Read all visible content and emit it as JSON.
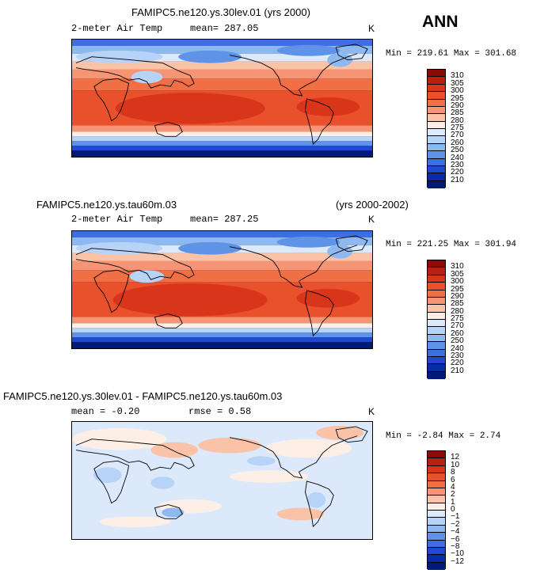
{
  "season": "ANN",
  "unit": "K",
  "field": "2-meter Air Temp",
  "panels": [
    {
      "title_left": "FAMIPC5.ne120.ys.30lev.01 (yrs 2000)",
      "title_right": "",
      "mean_text": "mean= 287.05",
      "rmse_text": "",
      "minmax_text": "Min = 219.61 Max = 301.68",
      "colorbar": {
        "levels": [
          "310",
          "305",
          "300",
          "295",
          "290",
          "285",
          "280",
          "275",
          "270",
          "260",
          "250",
          "240",
          "230",
          "220",
          "210"
        ],
        "colors": [
          "#8a0b08",
          "#b8200f",
          "#d9351a",
          "#e9502c",
          "#f06f45",
          "#f59575",
          "#fac3a8",
          "#fdefe6",
          "#dce9fb",
          "#b7d3f7",
          "#8db8f0",
          "#5e93e8",
          "#3c70e0",
          "#1f49d2",
          "#0a2aa8",
          "#001a7a"
        ]
      }
    },
    {
      "title_left": "FAMIPC5.ne120.ys.tau60m.03",
      "title_right": "(yrs 2000-2002)",
      "mean_text": "mean= 287.25",
      "rmse_text": "",
      "minmax_text": "Min = 221.25 Max = 301.94",
      "colorbar": {
        "levels": [
          "310",
          "305",
          "300",
          "295",
          "290",
          "285",
          "280",
          "275",
          "270",
          "260",
          "250",
          "240",
          "230",
          "220",
          "210"
        ],
        "colors": [
          "#8a0b08",
          "#b8200f",
          "#d9351a",
          "#e9502c",
          "#f06f45",
          "#f59575",
          "#fac3a8",
          "#fdefe6",
          "#dce9fb",
          "#b7d3f7",
          "#8db8f0",
          "#5e93e8",
          "#3c70e0",
          "#1f49d2",
          "#0a2aa8",
          "#001a7a"
        ]
      }
    },
    {
      "title_left": "FAMIPC5.ne120.ys.30lev.01 - FAMIPC5.ne120.ys.tau60m.03",
      "title_right": "",
      "mean_text": "mean =   -0.20",
      "rmse_text": "rmse =   0.58",
      "minmax_text": "Min =  -2.84 Max =   2.74",
      "colorbar": {
        "levels": [
          "12",
          "10",
          "8",
          "6",
          "4",
          "2",
          "1",
          "0",
          "−1",
          "−2",
          "−4",
          "−6",
          "−8",
          "−10",
          "−12"
        ],
        "colors": [
          "#8a0b08",
          "#b8200f",
          "#d9351a",
          "#e9502c",
          "#f06f45",
          "#f59575",
          "#fac3a8",
          "#fdefe6",
          "#dce9fb",
          "#b7d3f7",
          "#8db8f0",
          "#5e93e8",
          "#3c70e0",
          "#1f49d2",
          "#0a2aa8",
          "#001a7a"
        ]
      }
    }
  ]
}
